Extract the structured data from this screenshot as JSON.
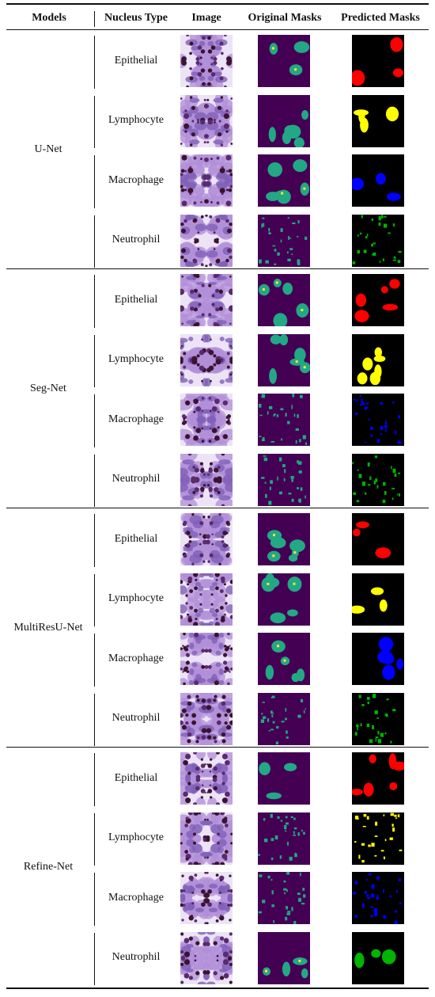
{
  "headers": {
    "models": "Models",
    "nucleus_type": "Nucleus Type",
    "image": "Image",
    "original_masks": "Original Masks",
    "predicted_masks": "Predicted Masks"
  },
  "groups": [
    {
      "model": "U-Net",
      "rows": [
        {
          "nucleus": "Epithelial",
          "image": "stained-tissue-image",
          "original": "mask-teal-blobs",
          "predicted": "mask-red-blobs"
        },
        {
          "nucleus": "Lymphocyte",
          "image": "stained-tissue-image",
          "original": "mask-teal-blobs",
          "predicted": "mask-yellow-blobs"
        },
        {
          "nucleus": "Macrophage",
          "image": "stained-tissue-image",
          "original": "mask-teal-blobs",
          "predicted": "mask-blue-blobs"
        },
        {
          "nucleus": "Neutrophil",
          "image": "stained-tissue-image",
          "original": "mask-teal-specks",
          "predicted": "mask-green-specks"
        }
      ]
    },
    {
      "model": "Seg-Net",
      "rows": [
        {
          "nucleus": "Epithelial",
          "image": "stained-tissue-image",
          "original": "mask-teal-blobs",
          "predicted": "mask-red-blobs"
        },
        {
          "nucleus": "Lymphocyte",
          "image": "stained-tissue-image",
          "original": "mask-teal-blobs",
          "predicted": "mask-yellow-blobs"
        },
        {
          "nucleus": "Macrophage",
          "image": "stained-tissue-image",
          "original": "mask-teal-specks",
          "predicted": "mask-blue-specks"
        },
        {
          "nucleus": "Neutrophil",
          "image": "stained-tissue-image",
          "original": "mask-teal-specks",
          "predicted": "mask-green-specks"
        }
      ]
    },
    {
      "model": "MultiResU-Net",
      "rows": [
        {
          "nucleus": "Epithelial",
          "image": "stained-tissue-image",
          "original": "mask-teal-blobs",
          "predicted": "mask-red-blobs"
        },
        {
          "nucleus": "Lymphocyte",
          "image": "stained-tissue-image",
          "original": "mask-teal-blobs",
          "predicted": "mask-yellow-blobs"
        },
        {
          "nucleus": "Macrophage",
          "image": "stained-tissue-image",
          "original": "mask-teal-blobs",
          "predicted": "mask-blue-blobs"
        },
        {
          "nucleus": "Neutrophil",
          "image": "stained-tissue-image",
          "original": "mask-teal-specks",
          "predicted": "mask-green-specks"
        }
      ]
    },
    {
      "model": "Refine-Net",
      "rows": [
        {
          "nucleus": "Epithelial",
          "image": "stained-tissue-image",
          "original": "mask-teal-blobs",
          "predicted": "mask-red-blobs"
        },
        {
          "nucleus": "Lymphocyte",
          "image": "stained-tissue-image",
          "original": "mask-teal-specks",
          "predicted": "mask-yellow-specks"
        },
        {
          "nucleus": "Macrophage",
          "image": "stained-tissue-image",
          "original": "mask-teal-specks",
          "predicted": "mask-blue-specks"
        },
        {
          "nucleus": "Neutrophil",
          "image": "stained-tissue-image",
          "original": "mask-teal-blobs",
          "predicted": "mask-green-blobs"
        }
      ]
    }
  ],
  "colors": {
    "mask_background": "#440154",
    "mask_teal": "#22a884",
    "mask_yellow_accent": "#fde725",
    "predicted_background": "#000000",
    "Epithelial": "#ff0000",
    "Lymphocyte": "#ffff00",
    "Macrophage": "#0000ff",
    "Neutrophil": "#00b400",
    "tissue_background": "#ece4f6",
    "tissue_light": "#b18fd8",
    "tissue_mid": "#8060b8",
    "tissue_dark": "#5a2a6e",
    "tissue_nucleus": "#3a1430"
  }
}
